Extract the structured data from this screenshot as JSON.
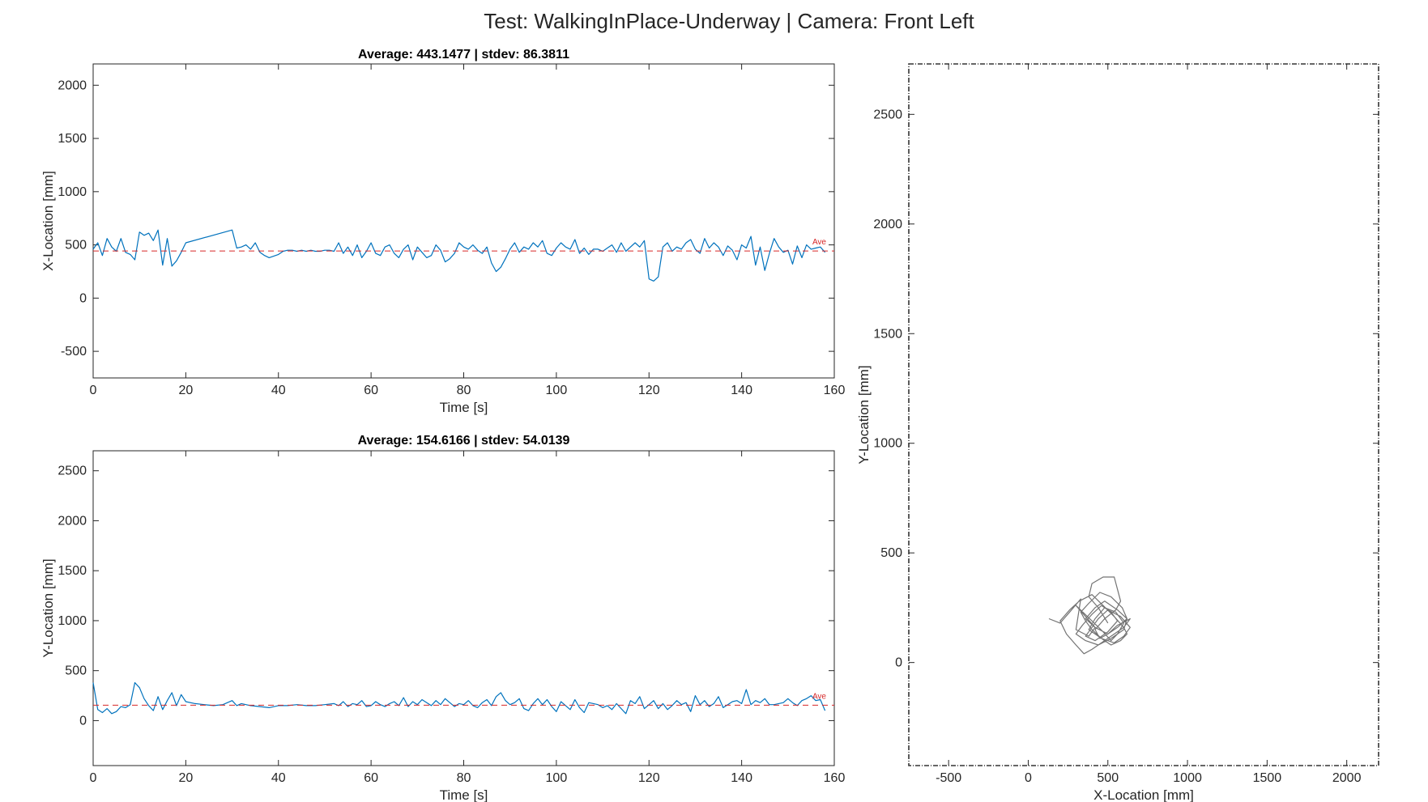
{
  "figure": {
    "title": "Test: WalkingInPlace-Underway  |  Camera: Front Left"
  },
  "chart_data": [
    {
      "id": "x-vs-time",
      "type": "line",
      "title": "Average: 443.1477  |  stdev: 86.3811",
      "xlabel": "Time [s]",
      "ylabel": "X-Location [mm]",
      "xlim": [
        0,
        160
      ],
      "ylim": [
        -750,
        2200
      ],
      "xticks": [
        0,
        20,
        40,
        60,
        80,
        100,
        120,
        140,
        160
      ],
      "yticks": [
        -500,
        0,
        500,
        1000,
        1500,
        2000
      ],
      "grid": false,
      "series_color": "#0072BD",
      "average": 443.1477,
      "average_label": "Ave",
      "average_color": "#d62728",
      "series": [
        {
          "x": [
            0,
            1,
            2,
            3,
            4,
            5,
            6,
            7,
            8,
            9,
            10,
            11,
            12,
            13,
            14,
            15,
            16,
            17,
            18,
            19,
            20,
            30,
            31,
            32,
            33,
            34,
            35,
            36,
            37,
            38,
            40,
            41,
            42,
            43,
            44,
            45,
            46,
            47,
            48,
            49,
            50,
            51,
            52,
            53,
            54,
            55,
            56,
            57,
            58,
            59,
            60,
            61,
            62,
            63,
            64,
            65,
            66,
            67,
            68,
            69,
            70,
            71,
            72,
            73,
            74,
            75,
            76,
            77,
            78,
            79,
            80,
            81,
            82,
            83,
            84,
            85,
            86,
            87,
            88,
            89,
            90,
            91,
            92,
            93,
            94,
            95,
            96,
            97,
            98,
            99,
            100,
            101,
            102,
            103,
            104,
            105,
            106,
            107,
            108,
            109,
            110,
            111,
            112,
            113,
            114,
            115,
            116,
            117,
            118,
            119,
            120,
            121,
            122,
            123,
            124,
            125,
            126,
            127,
            128,
            129,
            130,
            131,
            132,
            133,
            134,
            135,
            136,
            137,
            138,
            139,
            140,
            141,
            142,
            143,
            144,
            145,
            146,
            147,
            148,
            149,
            150,
            151,
            152,
            153,
            154,
            155,
            156,
            157,
            158
          ],
          "y": [
            460,
            520,
            400,
            560,
            480,
            440,
            560,
            430,
            410,
            360,
            620,
            590,
            610,
            540,
            640,
            310,
            560,
            300,
            350,
            430,
            520,
            640,
            470,
            480,
            500,
            460,
            520,
            430,
            400,
            380,
            410,
            440,
            450,
            450,
            440,
            450,
            440,
            450,
            440,
            440,
            450,
            450,
            440,
            520,
            420,
            480,
            400,
            500,
            380,
            440,
            520,
            420,
            400,
            480,
            500,
            420,
            380,
            460,
            500,
            360,
            480,
            430,
            380,
            400,
            500,
            450,
            340,
            370,
            420,
            520,
            480,
            460,
            500,
            450,
            420,
            480,
            330,
            250,
            290,
            370,
            460,
            520,
            430,
            480,
            460,
            520,
            480,
            540,
            420,
            400,
            470,
            520,
            480,
            460,
            550,
            420,
            470,
            410,
            460,
            460,
            440,
            470,
            500,
            430,
            520,
            440,
            480,
            520,
            480,
            540,
            180,
            160,
            200,
            480,
            520,
            440,
            480,
            460,
            520,
            550,
            460,
            420,
            560,
            470,
            520,
            480,
            400,
            490,
            450,
            360,
            500,
            470,
            580,
            310,
            480,
            260,
            420,
            560,
            480,
            430,
            450,
            320,
            490,
            380,
            500,
            460,
            470,
            480,
            430
          ]
        }
      ]
    },
    {
      "id": "y-vs-time",
      "type": "line",
      "title": "Average: 154.6166  |  stdev: 54.0139",
      "xlabel": "Time [s]",
      "ylabel": "Y-Location [mm]",
      "xlim": [
        0,
        160
      ],
      "ylim": [
        -450,
        2700
      ],
      "xticks": [
        0,
        20,
        40,
        60,
        80,
        100,
        120,
        140,
        160
      ],
      "yticks": [
        0,
        500,
        1000,
        1500,
        2000,
        2500
      ],
      "grid": false,
      "series_color": "#0072BD",
      "average": 154.6166,
      "average_label": "Ave",
      "average_color": "#d62728",
      "series": [
        {
          "x": [
            0,
            1,
            2,
            3,
            4,
            5,
            6,
            7,
            8,
            9,
            10,
            11,
            12,
            13,
            14,
            15,
            16,
            17,
            18,
            19,
            20,
            22,
            24,
            26,
            28,
            30,
            31,
            32,
            34,
            36,
            38,
            40,
            42,
            44,
            46,
            48,
            50,
            52,
            53,
            54,
            55,
            56,
            57,
            58,
            59,
            60,
            61,
            62,
            63,
            64,
            65,
            66,
            67,
            68,
            69,
            70,
            71,
            72,
            73,
            74,
            75,
            76,
            77,
            78,
            79,
            80,
            81,
            82,
            83,
            84,
            85,
            86,
            87,
            88,
            89,
            90,
            91,
            92,
            93,
            94,
            95,
            96,
            97,
            98,
            99,
            100,
            101,
            102,
            103,
            104,
            105,
            106,
            107,
            108,
            109,
            110,
            111,
            112,
            113,
            114,
            115,
            116,
            117,
            118,
            119,
            120,
            121,
            122,
            123,
            124,
            125,
            126,
            127,
            128,
            129,
            130,
            131,
            132,
            133,
            134,
            135,
            136,
            137,
            138,
            139,
            140,
            141,
            142,
            143,
            144,
            145,
            146,
            147,
            148,
            149,
            150,
            151,
            152,
            153,
            154,
            155,
            156,
            157,
            158
          ],
          "y": [
            380,
            110,
            80,
            120,
            70,
            90,
            140,
            130,
            160,
            380,
            330,
            220,
            150,
            100,
            240,
            110,
            200,
            280,
            150,
            260,
            190,
            170,
            160,
            150,
            160,
            200,
            150,
            170,
            150,
            140,
            130,
            150,
            150,
            160,
            150,
            150,
            160,
            170,
            150,
            190,
            140,
            170,
            160,
            200,
            140,
            150,
            190,
            160,
            140,
            170,
            190,
            150,
            230,
            140,
            190,
            160,
            210,
            180,
            150,
            200,
            160,
            220,
            180,
            140,
            170,
            160,
            200,
            150,
            130,
            180,
            210,
            150,
            240,
            280,
            200,
            160,
            180,
            220,
            120,
            100,
            170,
            220,
            160,
            210,
            140,
            90,
            190,
            150,
            110,
            210,
            130,
            80,
            180,
            170,
            160,
            130,
            150,
            110,
            170,
            120,
            70,
            200,
            170,
            240,
            120,
            160,
            200,
            120,
            170,
            110,
            150,
            200,
            160,
            180,
            90,
            250,
            160,
            200,
            140,
            170,
            240,
            130,
            160,
            190,
            200,
            170,
            310,
            160,
            200,
            180,
            220,
            160,
            160,
            170,
            180,
            220,
            180,
            150,
            200,
            220,
            250,
            200,
            210,
            100
          ]
        }
      ]
    },
    {
      "id": "xy-trajectory",
      "type": "line",
      "title": "",
      "xlabel": "X-Location [mm]",
      "ylabel": "Y-Location [mm]",
      "xlim": [
        -750,
        2200
      ],
      "ylim": [
        -470,
        2730
      ],
      "xticks": [
        -500,
        0,
        500,
        1000,
        1500,
        2000
      ],
      "yticks": [
        0,
        500,
        1000,
        1500,
        2000,
        2500
      ],
      "grid": false,
      "series_color": "#000000",
      "series": [
        {
          "x": [
            130,
            200,
            260,
            330,
            300,
            380,
            420,
            360,
            300,
            400,
            470,
            520,
            560,
            600,
            550,
            480,
            420,
            380,
            460,
            540,
            600,
            640,
            580,
            500,
            440,
            400,
            360,
            420,
            500,
            560,
            520,
            460,
            400,
            340,
            300,
            360,
            440,
            520,
            600,
            620,
            560,
            480,
            420,
            360,
            420,
            500,
            560,
            640,
            600,
            520,
            460,
            400,
            350,
            300,
            240,
            200,
            260,
            320,
            400,
            470,
            540,
            600,
            620,
            580,
            520,
            460,
            400,
            360,
            330,
            380,
            450,
            520,
            590,
            620,
            560,
            500,
            450,
            420,
            480,
            550,
            580,
            540,
            470,
            400,
            380,
            440,
            500
          ],
          "y": [
            200,
            180,
            230,
            290,
            150,
            120,
            160,
            210,
            260,
            190,
            140,
            100,
            130,
            180,
            230,
            250,
            200,
            150,
            110,
            90,
            120,
            160,
            210,
            240,
            200,
            160,
            120,
            100,
            140,
            190,
            230,
            260,
            220,
            170,
            130,
            100,
            80,
            110,
            150,
            200,
            240,
            280,
            250,
            200,
            160,
            130,
            170,
            200,
            160,
            120,
            90,
            60,
            40,
            80,
            130,
            190,
            240,
            280,
            310,
            260,
            210,
            160,
            130,
            100,
            80,
            110,
            150,
            190,
            230,
            270,
            320,
            300,
            250,
            200,
            160,
            130,
            110,
            150,
            200,
            240,
            280,
            390,
            390,
            360,
            300,
            250,
            180
          ]
        }
      ]
    }
  ]
}
